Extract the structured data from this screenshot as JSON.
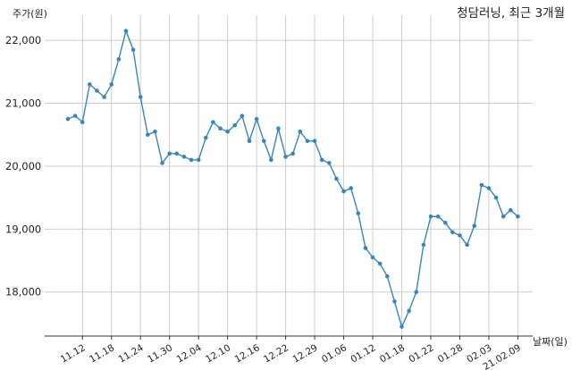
{
  "chart_data": {
    "type": "line",
    "title": "청담러닝, 최근 3개월",
    "ylabel": "주가(원)",
    "xlabel": "날짜(일)",
    "ylim": [
      17300,
      22400
    ],
    "grid": true,
    "y_ticks": [
      18000,
      19000,
      20000,
      21000,
      22000
    ],
    "y_tick_labels": [
      "18,000",
      "19,000",
      "20,000",
      "21,000",
      "22,000"
    ],
    "x_tick_labels": [
      "11.12",
      "11.18",
      "11.24",
      "11.30",
      "12.04",
      "12.10",
      "12.16",
      "12.22",
      "12.29",
      "01.06",
      "01.12",
      "01.18",
      "01.22",
      "01.28",
      "02.03",
      "21.02.09"
    ],
    "x_tick_positions": [
      2,
      6,
      10,
      14,
      18,
      22,
      26,
      30,
      34,
      38,
      42,
      46,
      50,
      54,
      58,
      62
    ],
    "line_color": "#3a85b8",
    "series": [
      {
        "values": [
          20750,
          20800,
          20700,
          21300,
          21200,
          21100,
          21300,
          21700,
          22150,
          21850,
          21100,
          20500,
          20550,
          20050,
          20200,
          20200,
          20150,
          20100,
          20100,
          20450,
          20700,
          20600,
          20550,
          20650,
          20800,
          20400,
          20750,
          20400,
          20100,
          20600,
          20150,
          20200,
          20550,
          20400,
          20400,
          20100,
          20050,
          19800,
          19600,
          19650,
          19250,
          18700,
          18550,
          18450,
          18250,
          17850,
          17450,
          17700,
          18000,
          18750,
          19200,
          19200,
          19100,
          18950,
          18900,
          18750,
          19050,
          19700,
          19650,
          19500,
          19200,
          19300,
          19200
        ]
      }
    ]
  }
}
